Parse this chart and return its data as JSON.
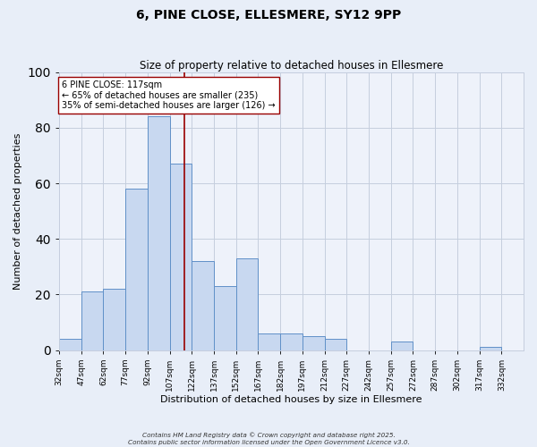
{
  "title": "6, PINE CLOSE, ELLESMERE, SY12 9PP",
  "subtitle": "Size of property relative to detached houses in Ellesmere",
  "xlabel": "Distribution of detached houses by size in Ellesmere",
  "ylabel": "Number of detached properties",
  "footer_line1": "Contains HM Land Registry data © Crown copyright and database right 2025.",
  "footer_line2": "Contains public sector information licensed under the Open Government Licence v3.0.",
  "bin_labels": [
    "32sqm",
    "47sqm",
    "62sqm",
    "77sqm",
    "92sqm",
    "107sqm",
    "122sqm",
    "137sqm",
    "152sqm",
    "167sqm",
    "182sqm",
    "197sqm",
    "212sqm",
    "227sqm",
    "242sqm",
    "257sqm",
    "272sqm",
    "287sqm",
    "302sqm",
    "317sqm",
    "332sqm"
  ],
  "bin_edges": [
    32,
    47,
    62,
    77,
    92,
    107,
    122,
    137,
    152,
    167,
    182,
    197,
    212,
    227,
    242,
    257,
    272,
    287,
    302,
    317,
    332
  ],
  "bar_heights": [
    4,
    21,
    22,
    58,
    84,
    67,
    32,
    23,
    33,
    6,
    6,
    5,
    4,
    0,
    0,
    3,
    0,
    0,
    0,
    1,
    0
  ],
  "bar_color": "#c8d8f0",
  "bar_edge_color": "#6090c8",
  "property_value": 117,
  "vline_color": "#990000",
  "annotation_title": "6 PINE CLOSE: 117sqm",
  "annotation_line1": "← 65% of detached houses are smaller (235)",
  "annotation_line2": "35% of semi-detached houses are larger (126) →",
  "annotation_box_color": "white",
  "annotation_box_edge": "#990000",
  "ylim": [
    0,
    100
  ],
  "yticks": [
    0,
    20,
    40,
    60,
    80,
    100
  ],
  "bg_color": "#e8eef8",
  "plot_bg_color": "#eef2fa",
  "grid_color": "#c5cede"
}
